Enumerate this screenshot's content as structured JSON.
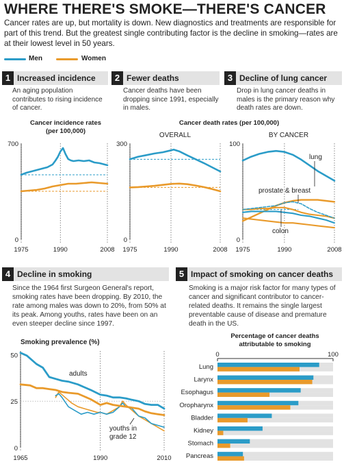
{
  "title": "WHERE THERE'S SMOKE—THERE'S CANCER",
  "intro": "Cancer rates are up, but mortality is down. New diagnostics and treatments are responsible for part of this trend. But the greatest single contributing factor is the decline in smoking—rates are at their lowest level in 50 years.",
  "legend": {
    "men": "Men",
    "women": "Women"
  },
  "colors": {
    "men": "#2b9cc8",
    "women": "#e99a2b"
  },
  "sections": {
    "s1": {
      "num": "1",
      "title": "Increased incidence",
      "text": "An aging population contributes to rising incidence of cancer."
    },
    "s2": {
      "num": "2",
      "title": "Fewer deaths",
      "text": "Cancer deaths have been dropping since 1991, especially in males."
    },
    "s3": {
      "num": "3",
      "title": "Decline of lung cancer",
      "text": "Drop in lung cancer deaths in males is the primary reason why death rates are down."
    },
    "s4": {
      "num": "4",
      "title": "Decline in smoking",
      "text": "Since the 1964 first Surgeon General's report, smoking rates have been dropping. By 2010, the rate among males was down to 20%, from 50% at its peak. Among youths, rates have been on an even steeper decline since 1997."
    },
    "s5": {
      "num": "5",
      "title": "Impact of smoking on cancer deaths",
      "text": "Smoking is a major risk factor for many types of cancer and significant contributor to cancer-related deaths. It remains the single largest preventable cause of disease and premature death in the US."
    }
  },
  "chart_data": [
    {
      "id": "incidence",
      "type": "line",
      "title": "Cancer incidence rates",
      "subtitle": "(per 100,000)",
      "x_ticks": [
        "1975",
        "1990",
        "2008"
      ],
      "y_ticks": [
        "700",
        "0"
      ],
      "xlim": [
        1975,
        2008
      ],
      "ylim": [
        0,
        700
      ],
      "series": [
        {
          "name": "Men",
          "x": [
            1975,
            1977,
            1979,
            1981,
            1983,
            1985,
            1987,
            1988,
            1989,
            1990,
            1991,
            1992,
            1993,
            1994,
            1995,
            1997,
            1999,
            2001,
            2003,
            2005,
            2007,
            2008
          ],
          "y": [
            470,
            485,
            495,
            505,
            515,
            525,
            545,
            570,
            600,
            640,
            665,
            620,
            585,
            575,
            570,
            575,
            570,
            575,
            560,
            555,
            545,
            540
          ]
        },
        {
          "name": "Women",
          "x": [
            1975,
            1978,
            1981,
            1984,
            1987,
            1990,
            1993,
            1996,
            1999,
            2002,
            2005,
            2008
          ],
          "y": [
            350,
            355,
            360,
            370,
            385,
            395,
            405,
            405,
            410,
            415,
            410,
            405
          ]
        }
      ]
    },
    {
      "id": "deaths_overall",
      "type": "line",
      "title": "Cancer death rates (per 100,000)",
      "subtitle": "OVERALL",
      "x_ticks": [
        "1975",
        "1990",
        "2008"
      ],
      "y_ticks": [
        "300",
        "0"
      ],
      "xlim": [
        1975,
        2008
      ],
      "ylim": [
        0,
        300
      ],
      "series": [
        {
          "name": "Men",
          "x": [
            1975,
            1978,
            1981,
            1984,
            1987,
            1990,
            1991,
            1993,
            1996,
            1999,
            2002,
            2005,
            2008
          ],
          "y": [
            250,
            258,
            263,
            268,
            272,
            278,
            280,
            275,
            262,
            250,
            238,
            225,
            212
          ]
        },
        {
          "name": "Women",
          "x": [
            1975,
            1978,
            1981,
            1984,
            1987,
            1990,
            1993,
            1996,
            1999,
            2002,
            2005,
            2008
          ],
          "y": [
            162,
            163,
            165,
            167,
            170,
            173,
            174,
            172,
            168,
            163,
            157,
            150
          ]
        }
      ]
    },
    {
      "id": "deaths_by_cancer",
      "type": "line",
      "subtitle": "BY CANCER",
      "x_ticks": [
        "1975",
        "1990",
        "2008"
      ],
      "y_ticks": [
        "100",
        "0"
      ],
      "xlim": [
        1975,
        2008
      ],
      "ylim": [
        0,
        100
      ],
      "annotations": [
        "lung",
        "prostate & breast",
        "colon"
      ],
      "series": [
        {
          "name": "Men lung",
          "x": [
            1975,
            1978,
            1981,
            1984,
            1987,
            1990,
            1993,
            1996,
            1999,
            2002,
            2005,
            2008
          ],
          "y": [
            82,
            86,
            89,
            91,
            92,
            91,
            88,
            83,
            77,
            71,
            66,
            61
          ]
        },
        {
          "name": "Women lung",
          "x": [
            1975,
            1978,
            1981,
            1984,
            1987,
            1990,
            1993,
            1996,
            1999,
            2002,
            2005,
            2008
          ],
          "y": [
            19,
            23,
            27,
            31,
            35,
            38,
            40,
            41,
            41,
            41,
            40,
            39
          ]
        },
        {
          "name": "Men prostate",
          "x": [
            1975,
            1978,
            1981,
            1984,
            1987,
            1990,
            1993,
            1996,
            1999,
            2002,
            2005,
            2008
          ],
          "y": [
            31,
            32,
            33,
            34,
            35,
            38,
            39,
            37,
            32,
            28,
            25,
            22
          ]
        },
        {
          "name": "Women breast",
          "x": [
            1975,
            1978,
            1981,
            1984,
            1987,
            1990,
            1993,
            1996,
            1999,
            2002,
            2005,
            2008
          ],
          "y": [
            31,
            31,
            32,
            32,
            33,
            33,
            31,
            28,
            26,
            25,
            24,
            22
          ]
        },
        {
          "name": "Men colon",
          "x": [
            1975,
            1978,
            1981,
            1984,
            1987,
            1990,
            1993,
            1996,
            1999,
            2002,
            2005,
            2008
          ],
          "y": [
            28,
            29,
            29,
            29,
            29,
            28,
            27,
            25,
            24,
            22,
            20,
            17
          ]
        },
        {
          "name": "Women colon",
          "x": [
            1975,
            1978,
            1981,
            1984,
            1987,
            1990,
            1993,
            1996,
            1999,
            2002,
            2005,
            2008
          ],
          "y": [
            22,
            21,
            20,
            19,
            18,
            17,
            17,
            16,
            15,
            14,
            13,
            12
          ]
        }
      ]
    },
    {
      "id": "smoking",
      "type": "line",
      "title": "Smoking prevalence (%)",
      "x_ticks": [
        "1965",
        "1990",
        "2010"
      ],
      "y_ticks": [
        "50",
        "25",
        "0"
      ],
      "xlim": [
        1965,
        2010
      ],
      "ylim": [
        0,
        52
      ],
      "annotations": [
        "adults",
        "youths in grade 12"
      ],
      "series": [
        {
          "name": "Men adults",
          "x": [
            1965,
            1967,
            1970,
            1972,
            1974,
            1976,
            1978,
            1980,
            1983,
            1985,
            1987,
            1990,
            1992,
            1994,
            1996,
            1998,
            2000,
            2002,
            2004,
            2006,
            2008,
            2010
          ],
          "y": [
            51,
            49.5,
            45,
            43,
            38,
            37,
            36,
            35.5,
            34,
            32.5,
            31,
            28.5,
            28,
            27,
            27,
            26.5,
            25.7,
            25,
            23.5,
            23,
            23,
            21
          ]
        },
        {
          "name": "Women adults",
          "x": [
            1965,
            1968,
            1970,
            1972,
            1974,
            1976,
            1978,
            1980,
            1983,
            1985,
            1987,
            1990,
            1992,
            1994,
            1996,
            1998,
            2000,
            2002,
            2004,
            2006,
            2008,
            2010
          ],
          "y": [
            34,
            33.5,
            32,
            32,
            31.5,
            31,
            30,
            29.5,
            29,
            27.5,
            26,
            23,
            24,
            23,
            22.5,
            22,
            21.5,
            21,
            19.5,
            18.5,
            18,
            17.5
          ]
        },
        {
          "name": "Men youths grade 12",
          "x": [
            1976,
            1977,
            1978,
            1980,
            1982,
            1984,
            1986,
            1988,
            1990,
            1992,
            1994,
            1996,
            1997,
            1998,
            2000,
            2002,
            2004,
            2006,
            2008,
            2010
          ],
          "y": [
            28,
            29,
            27,
            22,
            20,
            18,
            19,
            18,
            19,
            18,
            19,
            22,
            24,
            22,
            21,
            17,
            16,
            13,
            12,
            11
          ]
        },
        {
          "name": "Women youths grade 12",
          "x": [
            1976,
            1977,
            1979,
            1981,
            1983,
            1985,
            1987,
            1989,
            1990,
            1992,
            1994,
            1996,
            1997,
            1998,
            2000,
            2002,
            2004,
            2006,
            2008,
            2010
          ],
          "y": [
            27,
            30,
            27,
            24,
            22,
            21,
            20,
            19,
            19,
            18,
            20,
            22,
            25,
            23,
            20,
            17,
            15,
            13,
            11,
            9
          ]
        }
      ]
    },
    {
      "id": "attributable",
      "type": "bar",
      "title": "Percentage of cancer deaths attributable to smoking",
      "x_ticks": [
        "0",
        "100"
      ],
      "xlim": [
        0,
        100
      ],
      "categories": [
        "Lung",
        "Larynx",
        "Esophagus",
        "Oropharynx",
        "Bladder",
        "Kidney",
        "Stomach",
        "Pancreas"
      ],
      "series": [
        {
          "name": "Men",
          "values": [
            88,
            83,
            72,
            70,
            47,
            39,
            28,
            22
          ]
        },
        {
          "name": "Women",
          "values": [
            71,
            82,
            45,
            63,
            26,
            5,
            11,
            23
          ]
        }
      ]
    }
  ]
}
